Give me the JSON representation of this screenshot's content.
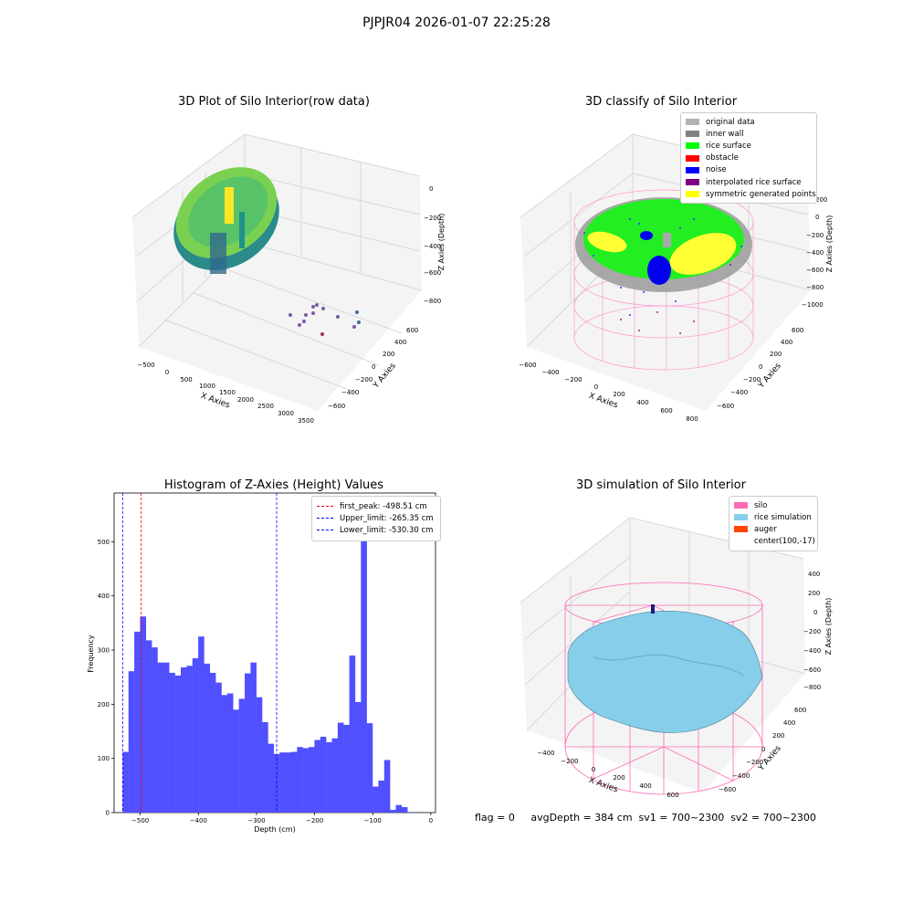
{
  "figure": {
    "suptitle": "PJPJR04 2026-01-07 22:25:28",
    "footer": "flag = 0     avgDepth = 384 cm  sv1 = 700~2300  sv2 = 700~2300"
  },
  "panels": [
    {
      "title": "3D Plot of Silo Interior(row data)",
      "xlabel": "X Axies",
      "ylabel": "Y Axies",
      "zlabel": "Z Axies (Depth)",
      "xticks": [
        "−500",
        "0",
        "500",
        "1000",
        "1500",
        "2000",
        "2500",
        "3000",
        "3500"
      ],
      "yticks": [
        "600",
        "400",
        "200",
        "0",
        "−200",
        "−400",
        "−600"
      ],
      "zticks": [
        "0",
        "−200",
        "−400",
        "−600",
        "−800"
      ]
    },
    {
      "title": "3D classify of Silo Interior",
      "xlabel": "X Axies",
      "ylabel": "Y Axies",
      "zlabel": "Z Axies (Depth)",
      "xticks": [
        "−600",
        "−400",
        "−200",
        "0",
        "200",
        "400",
        "600",
        "800"
      ],
      "yticks": [
        "600",
        "400",
        "200",
        "0",
        "−200",
        "−400",
        "−600"
      ],
      "zticks": [
        "200",
        "0",
        "−200",
        "−400",
        "−600",
        "−800",
        "−1000"
      ],
      "legend": [
        {
          "label": "original data",
          "color": "#b3b3b3"
        },
        {
          "label": "inner wall",
          "color": "#808080"
        },
        {
          "label": "rice surface",
          "color": "#00ff00"
        },
        {
          "label": "obstacle",
          "color": "#ff0000"
        },
        {
          "label": "noise",
          "color": "#0000ff"
        },
        {
          "label": "interpolated rice surface",
          "color": "#800080"
        },
        {
          "label": "symmetric generated points",
          "color": "#ffff00"
        }
      ]
    },
    {
      "title": "3D simulation of Silo Interior",
      "xlabel": "X Axies",
      "ylabel": "Y Axies",
      "zlabel": "Z Axies (Depth)",
      "xticks": [
        "−400",
        "−200",
        "0",
        "200",
        "400",
        "600"
      ],
      "yticks": [
        "600",
        "400",
        "200",
        "0",
        "−200",
        "−400",
        "−600"
      ],
      "zticks": [
        "400",
        "200",
        "0",
        "−200",
        "−400",
        "−600",
        "−800"
      ],
      "legend": [
        {
          "label": "silo",
          "color": "#ff69b4"
        },
        {
          "label": "rice simulation",
          "color": "#87ceeb"
        },
        {
          "label": "auger",
          "color": "#ff4500"
        },
        {
          "label": "center(100,-17)",
          "color": ""
        }
      ]
    }
  ],
  "chart_data": {
    "type": "bar",
    "title": "Histogram of Z-Axies (Height) Values",
    "xlabel": "Depth (cm)",
    "ylabel": "Frequency",
    "xlim": [
      -545,
      8
    ],
    "ylim": [
      0,
      590
    ],
    "xticks": [
      -500,
      -400,
      -300,
      -200,
      -100,
      0
    ],
    "yticks": [
      0,
      100,
      200,
      300,
      400,
      500
    ],
    "bin_start": -530.3,
    "bin_width": 10.0,
    "color": "#5050ff",
    "values": [
      112,
      261,
      334,
      362,
      318,
      305,
      277,
      277,
      258,
      253,
      268,
      271,
      285,
      325,
      275,
      258,
      240,
      217,
      220,
      190,
      210,
      257,
      277,
      213,
      167,
      127,
      108,
      111,
      111,
      112,
      121,
      119,
      121,
      134,
      140,
      130,
      137,
      166,
      162,
      290,
      204,
      566,
      165,
      48,
      59,
      97,
      5,
      14,
      10,
      1
    ],
    "vlines": [
      {
        "label": "first_peak: -498.51 cm",
        "x": -498.51,
        "color": "#ff0000"
      },
      {
        "label": "Upper_limit: -265.35 cm",
        "x": -265.35,
        "color": "#0000ff"
      },
      {
        "label": "Lower_limit: -530.30 cm",
        "x": -530.3,
        "color": "#0000ff"
      }
    ],
    "legend_position": "upper right"
  }
}
